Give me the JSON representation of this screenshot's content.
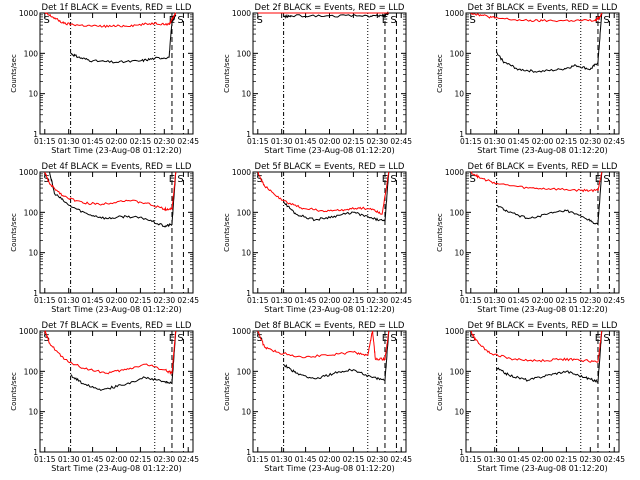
{
  "colors": {
    "events": "#000000",
    "lld": "#ff0000",
    "axis": "#000000"
  },
  "chart_data": [
    {
      "type": "line",
      "title": "Det 1f BLACK = Events, RED = LLD",
      "xlabel": "Start Time (23-Aug-08 01:12:20)",
      "ylabel": "Counts/sec",
      "yscale": "log",
      "ylim": [
        1,
        1000
      ],
      "x_ticks": [
        "01:15",
        "01:30",
        "01:45",
        "02:00",
        "02:15",
        "02:30",
        "02:45"
      ],
      "y_ticks": [
        "1",
        "10",
        "100",
        "1000"
      ],
      "markers": [
        "S",
        "E",
        "S"
      ],
      "series": [
        {
          "name": "Events",
          "color": "#000000",
          "points": [
            [
              1.25,
              null
            ],
            [
              1.5,
              null
            ],
            [
              1.52,
              100
            ],
            [
              1.6,
              80
            ],
            [
              1.75,
              65
            ],
            [
              2.0,
              60
            ],
            [
              2.25,
              65
            ],
            [
              2.4,
              75
            ],
            [
              2.55,
              80
            ],
            [
              2.58,
              600
            ],
            [
              2.62,
              900
            ]
          ]
        },
        {
          "name": "LLD",
          "color": "#ff0000",
          "points": [
            [
              1.25,
              1000
            ],
            [
              1.33,
              800
            ],
            [
              1.45,
              550
            ],
            [
              1.6,
              500
            ],
            [
              1.8,
              470
            ],
            [
              2.0,
              470
            ],
            [
              2.2,
              500
            ],
            [
              2.4,
              560
            ],
            [
              2.55,
              520
            ],
            [
              2.58,
              700
            ],
            [
              2.62,
              1000
            ]
          ]
        }
      ]
    },
    {
      "type": "line",
      "title": "Det 2f BLACK = Events, RED = LLD",
      "xlabel": "Start Time (23-Aug-08 01:12:20)",
      "ylabel": "Counts/sec",
      "yscale": "log",
      "ylim": [
        1,
        1000
      ],
      "x_ticks": [
        "01:15",
        "01:30",
        "01:45",
        "02:00",
        "02:15",
        "02:30",
        "02:45"
      ],
      "y_ticks": [
        "1",
        "10",
        "100",
        "1000"
      ],
      "markers": [
        "S",
        "E",
        "S"
      ],
      "series": [
        {
          "name": "Events",
          "color": "#000000",
          "points": [
            [
              1.5,
              null
            ],
            [
              1.52,
              800
            ],
            [
              1.6,
              850
            ],
            [
              2.0,
              850
            ],
            [
              2.4,
              850
            ],
            [
              2.55,
              850
            ],
            [
              2.58,
              900
            ],
            [
              2.62,
              1000
            ]
          ]
        },
        {
          "name": "LLD",
          "color": "#ff0000",
          "points": [
            [
              1.25,
              1000
            ],
            [
              1.33,
              1400
            ],
            [
              1.45,
              1150
            ],
            [
              1.6,
              1100
            ],
            [
              2.0,
              1100
            ],
            [
              2.4,
              1100
            ],
            [
              2.55,
              1100
            ],
            [
              2.6,
              1200
            ],
            [
              2.62,
              1000
            ]
          ]
        }
      ]
    },
    {
      "type": "line",
      "title": "Det 3f BLACK = Events, RED = LLD",
      "xlabel": "Start Time (23-Aug-08 01:12:20)",
      "ylabel": "Counts/sec",
      "yscale": "log",
      "ylim": [
        1,
        1000
      ],
      "x_ticks": [
        "01:15",
        "01:30",
        "01:45",
        "02:00",
        "02:15",
        "02:30",
        "02:45"
      ],
      "y_ticks": [
        "1",
        "10",
        "100",
        "1000"
      ],
      "markers": [
        "S",
        "E",
        "S"
      ],
      "series": [
        {
          "name": "Events",
          "color": "#000000",
          "points": [
            [
              1.52,
              100
            ],
            [
              1.6,
              60
            ],
            [
              1.75,
              40
            ],
            [
              1.95,
              35
            ],
            [
              2.2,
              40
            ],
            [
              2.35,
              50
            ],
            [
              2.5,
              40
            ],
            [
              2.58,
              60
            ],
            [
              2.62,
              1000
            ]
          ]
        },
        {
          "name": "LLD",
          "color": "#ff0000",
          "points": [
            [
              1.25,
              1000
            ],
            [
              1.35,
              900
            ],
            [
              1.5,
              750
            ],
            [
              1.8,
              650
            ],
            [
              2.0,
              640
            ],
            [
              2.3,
              650
            ],
            [
              2.55,
              650
            ],
            [
              2.6,
              800
            ],
            [
              2.62,
              1000
            ]
          ]
        }
      ]
    },
    {
      "type": "line",
      "title": "Det 4f BLACK = Events, RED = LLD",
      "xlabel": "Start Time (23-Aug-08 01:12:20)",
      "ylabel": "Counts/sec",
      "yscale": "log",
      "ylim": [
        1,
        1000
      ],
      "x_ticks": [
        "01:15",
        "01:30",
        "01:45",
        "02:00",
        "02:15",
        "02:30",
        "02:45"
      ],
      "y_ticks": [
        "1",
        "10",
        "100",
        "1000"
      ],
      "markers": [
        "S",
        "E",
        "S"
      ],
      "series": [
        {
          "name": "Events",
          "color": "#000000",
          "points": [
            [
              1.3,
              1000
            ],
            [
              1.35,
              300
            ],
            [
              1.5,
              150
            ],
            [
              1.7,
              90
            ],
            [
              1.9,
              70
            ],
            [
              2.1,
              80
            ],
            [
              2.3,
              70
            ],
            [
              2.5,
              45
            ],
            [
              2.58,
              50
            ],
            [
              2.62,
              1000
            ]
          ]
        },
        {
          "name": "LLD",
          "color": "#ff0000",
          "points": [
            [
              1.25,
              1000
            ],
            [
              1.3,
              500
            ],
            [
              1.45,
              250
            ],
            [
              1.65,
              170
            ],
            [
              1.85,
              160
            ],
            [
              2.1,
              200
            ],
            [
              2.3,
              170
            ],
            [
              2.5,
              120
            ],
            [
              2.58,
              120
            ],
            [
              2.62,
              1000
            ]
          ]
        }
      ]
    },
    {
      "type": "line",
      "title": "Det 5f BLACK = Events, RED = LLD",
      "xlabel": "Start Time (23-Aug-08 01:12:20)",
      "ylabel": "Counts/sec",
      "yscale": "log",
      "ylim": [
        1,
        1000
      ],
      "x_ticks": [
        "01:15",
        "01:30",
        "01:45",
        "02:00",
        "02:15",
        "02:30",
        "02:45"
      ],
      "y_ticks": [
        "1",
        "10",
        "100",
        "1000"
      ],
      "markers": [
        "S",
        "E",
        "S"
      ],
      "series": [
        {
          "name": "Events",
          "color": "#000000",
          "points": [
            [
              1.5,
              null
            ],
            [
              1.52,
              180
            ],
            [
              1.65,
              90
            ],
            [
              1.85,
              65
            ],
            [
              2.05,
              80
            ],
            [
              2.25,
              100
            ],
            [
              2.45,
              70
            ],
            [
              2.58,
              60
            ],
            [
              2.62,
              1000
            ]
          ]
        },
        {
          "name": "LLD",
          "color": "#ff0000",
          "points": [
            [
              1.25,
              1000
            ],
            [
              1.32,
              450
            ],
            [
              1.5,
              200
            ],
            [
              1.7,
              130
            ],
            [
              1.9,
              110
            ],
            [
              2.1,
              110
            ],
            [
              2.3,
              130
            ],
            [
              2.45,
              120
            ],
            [
              2.55,
              90
            ],
            [
              2.62,
              1000
            ]
          ]
        }
      ]
    },
    {
      "type": "line",
      "title": "Det 6f BLACK = Events, RED = LLD",
      "xlabel": "Start Time (23-Aug-08 01:12:20)",
      "ylabel": "Counts/sec",
      "yscale": "log",
      "ylim": [
        1,
        1000
      ],
      "x_ticks": [
        "01:15",
        "01:30",
        "01:45",
        "02:00",
        "02:15",
        "02:30",
        "02:45"
      ],
      "y_ticks": [
        "1",
        "10",
        "100",
        "1000"
      ],
      "markers": [
        "S",
        "E",
        "S"
      ],
      "series": [
        {
          "name": "Events",
          "color": "#000000",
          "points": [
            [
              1.52,
              150
            ],
            [
              1.65,
              100
            ],
            [
              1.85,
              70
            ],
            [
              2.05,
              90
            ],
            [
              2.25,
              110
            ],
            [
              2.45,
              70
            ],
            [
              2.58,
              50
            ],
            [
              2.62,
              1000
            ]
          ]
        },
        {
          "name": "LLD",
          "color": "#ff0000",
          "points": [
            [
              1.25,
              1000
            ],
            [
              1.35,
              700
            ],
            [
              1.55,
              500
            ],
            [
              1.85,
              400
            ],
            [
              2.1,
              380
            ],
            [
              2.4,
              350
            ],
            [
              2.58,
              350
            ],
            [
              2.62,
              1000
            ]
          ]
        }
      ]
    },
    {
      "type": "line",
      "title": "Det 7f BLACK = Events, RED = LLD",
      "xlabel": "Start Time (23-Aug-08 01:12:20)",
      "ylabel": "Counts/sec",
      "yscale": "log",
      "ylim": [
        1,
        1000
      ],
      "x_ticks": [
        "01:15",
        "01:30",
        "01:45",
        "02:00",
        "02:15",
        "02:30",
        "02:45"
      ],
      "y_ticks": [
        "1",
        "10",
        "100",
        "1000"
      ],
      "markers": [
        "S",
        "E",
        "S"
      ],
      "series": [
        {
          "name": "Events",
          "color": "#000000",
          "points": [
            [
              1.52,
              80
            ],
            [
              1.65,
              50
            ],
            [
              1.85,
              35
            ],
            [
              2.05,
              45
            ],
            [
              2.3,
              70
            ],
            [
              2.5,
              55
            ],
            [
              2.58,
              50
            ],
            [
              2.62,
              1000
            ]
          ]
        },
        {
          "name": "LLD",
          "color": "#ff0000",
          "points": [
            [
              1.25,
              1000
            ],
            [
              1.3,
              500
            ],
            [
              1.45,
              200
            ],
            [
              1.65,
              120
            ],
            [
              1.9,
              90
            ],
            [
              2.1,
              110
            ],
            [
              2.3,
              150
            ],
            [
              2.5,
              110
            ],
            [
              2.58,
              90
            ],
            [
              2.62,
              1000
            ]
          ]
        }
      ]
    },
    {
      "type": "line",
      "title": "Det 8f BLACK = Events, RED = LLD",
      "xlabel": "Start Time (23-Aug-08 01:12:20)",
      "ylabel": "Counts/sec",
      "yscale": "log",
      "ylim": [
        1,
        1000
      ],
      "x_ticks": [
        "01:15",
        "01:30",
        "01:45",
        "02:00",
        "02:15",
        "02:30",
        "02:45"
      ],
      "y_ticks": [
        "1",
        "10",
        "100",
        "1000"
      ],
      "markers": [
        "S",
        "E",
        "S"
      ],
      "series": [
        {
          "name": "Events",
          "color": "#000000",
          "points": [
            [
              1.52,
              150
            ],
            [
              1.65,
              90
            ],
            [
              1.85,
              65
            ],
            [
              2.05,
              90
            ],
            [
              2.25,
              110
            ],
            [
              2.45,
              70
            ],
            [
              2.58,
              60
            ],
            [
              2.62,
              1000
            ]
          ]
        },
        {
          "name": "LLD",
          "color": "#ff0000",
          "points": [
            [
              1.25,
              1000
            ],
            [
              1.32,
              400
            ],
            [
              1.45,
              300
            ],
            [
              1.7,
              230
            ],
            [
              2.0,
              250
            ],
            [
              2.25,
              300
            ],
            [
              2.4,
              250
            ],
            [
              2.45,
              1000
            ],
            [
              2.48,
              200
            ],
            [
              2.58,
              200
            ],
            [
              2.62,
              1000
            ]
          ]
        }
      ]
    },
    {
      "type": "line",
      "title": "Det 9f BLACK = Events, RED = LLD",
      "xlabel": "Start Time (23-Aug-08 01:12:20)",
      "ylabel": "Counts/sec",
      "yscale": "log",
      "ylim": [
        1,
        1000
      ],
      "x_ticks": [
        "01:15",
        "01:30",
        "01:45",
        "02:00",
        "02:15",
        "02:30",
        "02:45"
      ],
      "y_ticks": [
        "1",
        "10",
        "100",
        "1000"
      ],
      "markers": [
        "S",
        "E",
        "S"
      ],
      "series": [
        {
          "name": "Events",
          "color": "#000000",
          "points": [
            [
              1.52,
              120
            ],
            [
              1.65,
              80
            ],
            [
              1.85,
              60
            ],
            [
              2.05,
              80
            ],
            [
              2.25,
              100
            ],
            [
              2.45,
              70
            ],
            [
              2.58,
              55
            ],
            [
              2.62,
              1000
            ]
          ]
        },
        {
          "name": "LLD",
          "color": "#ff0000",
          "points": [
            [
              1.25,
              1000
            ],
            [
              1.3,
              600
            ],
            [
              1.45,
              280
            ],
            [
              1.7,
              200
            ],
            [
              1.95,
              180
            ],
            [
              2.2,
              200
            ],
            [
              2.4,
              190
            ],
            [
              2.58,
              170
            ],
            [
              2.62,
              1000
            ]
          ]
        }
      ]
    }
  ]
}
